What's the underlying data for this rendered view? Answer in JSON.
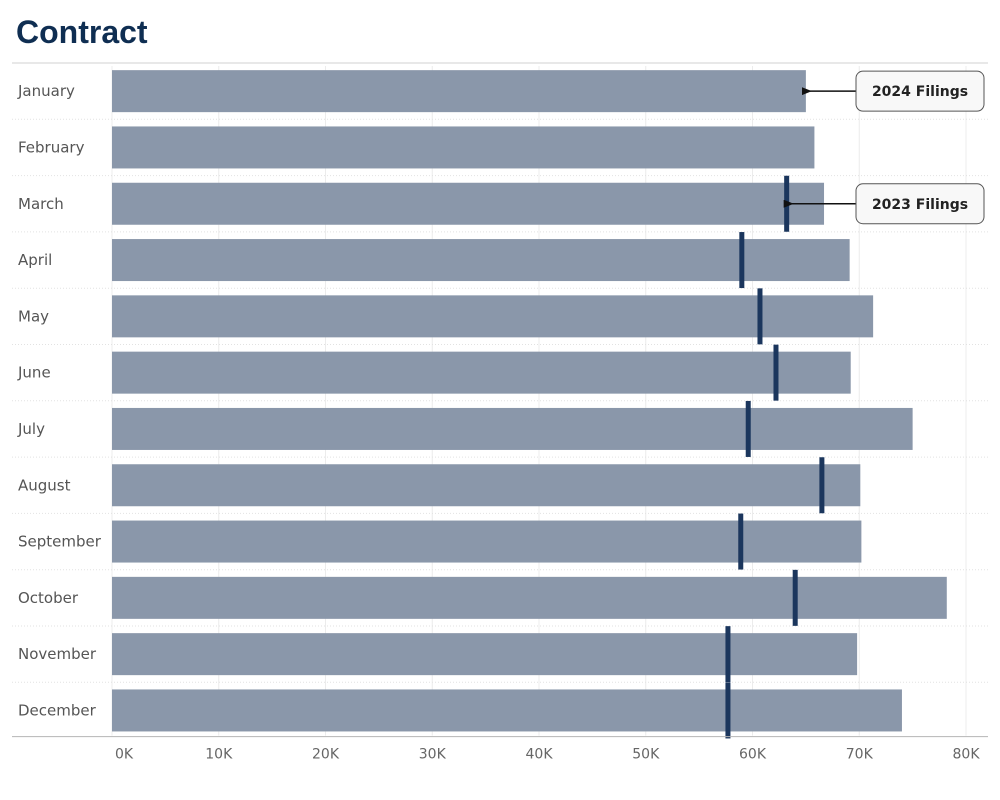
{
  "page": {
    "title": "Contract"
  },
  "colors": {
    "bar": "#8a97aa",
    "marker": "#1b365d",
    "title": "#0f2e52"
  },
  "chart_data": {
    "type": "bar",
    "orientation": "horizontal",
    "title": "Contract",
    "xlabel": "",
    "ylabel": "",
    "xlim": [
      0,
      80000
    ],
    "grid": true,
    "categories": [
      "January",
      "February",
      "March",
      "April",
      "May",
      "June",
      "July",
      "August",
      "September",
      "October",
      "November",
      "December"
    ],
    "series": [
      {
        "name": "2024 Filings",
        "mark": "bar",
        "values": [
          65000,
          65800,
          66700,
          69100,
          71300,
          69200,
          75000,
          70100,
          70200,
          78200,
          69800,
          74000
        ]
      },
      {
        "name": "2023 Filings",
        "mark": "reference-line",
        "values": [
          null,
          null,
          63200,
          59000,
          60700,
          62200,
          59600,
          66500,
          58900,
          64000,
          57700,
          57700
        ]
      }
    ],
    "x_ticks": [
      "0K",
      "10K",
      "20K",
      "30K",
      "40K",
      "50K",
      "60K",
      "70K",
      "80K"
    ],
    "annotations": [
      {
        "text": "2024 Filings",
        "category": "January",
        "series": "2024 Filings"
      },
      {
        "text": "2023 Filings",
        "category": "March",
        "series": "2023 Filings"
      }
    ]
  }
}
